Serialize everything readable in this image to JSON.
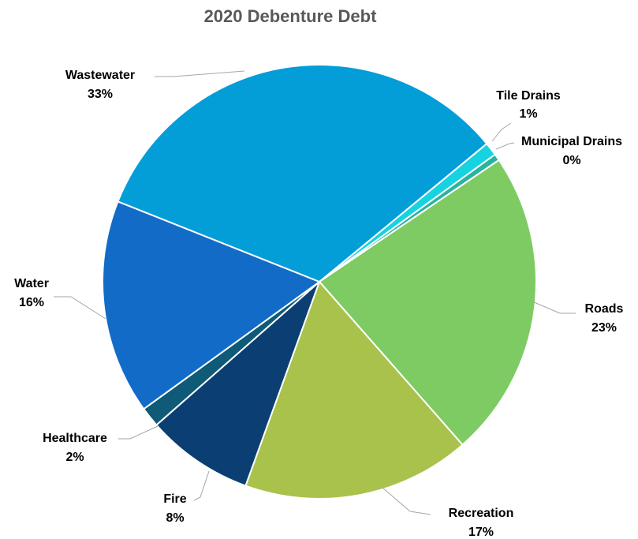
{
  "chart_data": {
    "type": "pie",
    "title": "2020 Debenture Debt",
    "slices": [
      {
        "label": "Tile Drains",
        "value": 1,
        "value_label": "1%",
        "color": "#17d3e0"
      },
      {
        "label": "Municipal Drains",
        "value": 0.5,
        "value_label": "0%",
        "color": "#2bb3a0"
      },
      {
        "label": "Roads",
        "value": 23,
        "value_label": "23%",
        "color": "#7ecb63"
      },
      {
        "label": "Recreation",
        "value": 17,
        "value_label": "17%",
        "color": "#a8c24b"
      },
      {
        "label": "Fire",
        "value": 8,
        "value_label": "8%",
        "color": "#0b3f73"
      },
      {
        "label": "Healthcare",
        "value": 1.5,
        "value_label": "2%",
        "color": "#0e5a77"
      },
      {
        "label": "Water",
        "value": 16,
        "value_label": "16%",
        "color": "#126cc7"
      },
      {
        "label": "Wastewater",
        "value": 33,
        "value_label": "33%",
        "color": "#039dd8"
      }
    ],
    "start_direction": "upper-right",
    "direction": "clockwise",
    "legend": "none"
  }
}
